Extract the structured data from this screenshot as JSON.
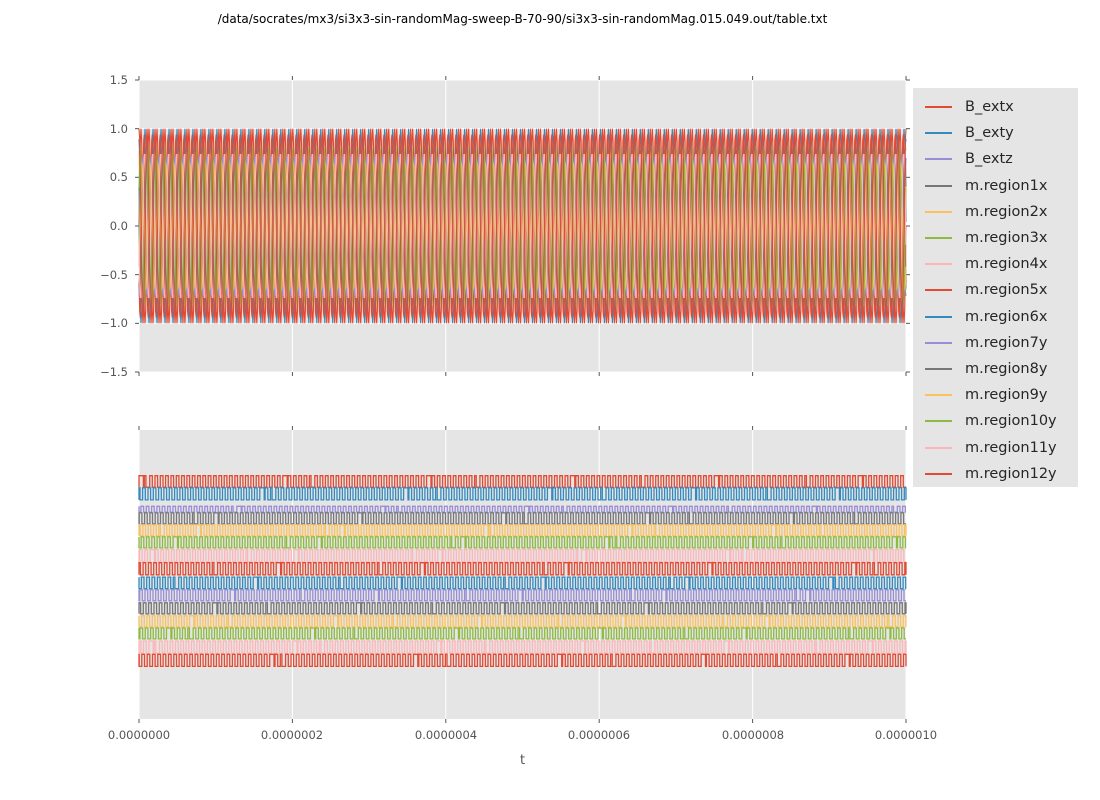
{
  "title": "/data/socrates/mx3/si3x3-sin-randomMag-sweep-B-70-90/si3x3-sin-randomMag.015.049.out/table.txt",
  "colors": {
    "figure_bg": "#ffffff",
    "axes_bg": "#e5e5e5",
    "grid": "#ffffff",
    "tick": "#555555",
    "tick_label": "#555555",
    "title_text": "#000000",
    "legend_bg": "#e5e5e5",
    "legend_text": "#262626"
  },
  "legend": {
    "items": [
      {
        "label": "B_extx",
        "color": "#E24A33"
      },
      {
        "label": "B_exty",
        "color": "#348ABD"
      },
      {
        "label": "B_extz",
        "color": "#988ED5"
      },
      {
        "label": "m.region1x",
        "color": "#777777"
      },
      {
        "label": "m.region2x",
        "color": "#FBC15E"
      },
      {
        "label": "m.region3x",
        "color": "#8EBA42"
      },
      {
        "label": "m.region4x",
        "color": "#FFB5B8"
      },
      {
        "label": "m.region5x",
        "color": "#E24A33"
      },
      {
        "label": "m.region6x",
        "color": "#348ABD"
      },
      {
        "label": "m.region7y",
        "color": "#988ED5"
      },
      {
        "label": "m.region8y",
        "color": "#777777"
      },
      {
        "label": "m.region9y",
        "color": "#FBC15E"
      },
      {
        "label": "m.region10y",
        "color": "#8EBA42"
      },
      {
        "label": "m.region11y",
        "color": "#FFB5B8"
      },
      {
        "label": "m.region12y",
        "color": "#E24A33"
      }
    ]
  },
  "chart_data": [
    {
      "id": "top-subplot",
      "type": "line",
      "waveform": "sine",
      "xlim": [
        0,
        1e-06
      ],
      "ylim": [
        -1.5,
        1.5
      ],
      "xticks": [
        0,
        2e-07,
        4e-07,
        6e-07,
        8e-07,
        1e-06
      ],
      "yticks": [
        1.5,
        1.0,
        0.5,
        0.0,
        -0.5,
        -1.0,
        -1.5
      ],
      "yticklabels": [
        "1.5",
        "1.0",
        "0.5",
        "0.0",
        "−0.5",
        "−1.0",
        "−1.5"
      ],
      "grid": "both",
      "cycles": 96,
      "series": [
        {
          "name": "B_extx",
          "color": "#E24A33",
          "amplitude": 1.0,
          "phase": 0.0
        },
        {
          "name": "B_exty",
          "color": "#348ABD",
          "amplitude": 1.0,
          "phase": 3.1
        },
        {
          "name": "B_extz",
          "color": "#988ED5",
          "amplitude": 0.75,
          "phase": 1.2
        },
        {
          "name": "m.region1x",
          "color": "#777777",
          "amplitude": 0.7,
          "phase": 4.3
        },
        {
          "name": "m.region2x",
          "color": "#FBC15E",
          "amplitude": 0.85,
          "phase": 2.0
        },
        {
          "name": "m.region3x",
          "color": "#8EBA42",
          "amplitude": 0.68,
          "phase": 5.1
        },
        {
          "name": "m.region4x",
          "color": "#FFB5B8",
          "amplitude": 0.8,
          "phase": 0.9
        },
        {
          "name": "m.region5x",
          "color": "#E24A33",
          "amplitude": 0.95,
          "phase": 3.8
        },
        {
          "name": "m.region6x",
          "color": "#348ABD",
          "amplitude": 0.9,
          "phase": 1.7
        },
        {
          "name": "m.region7y",
          "color": "#988ED5",
          "amplitude": 0.72,
          "phase": 4.8
        },
        {
          "name": "m.region8y",
          "color": "#777777",
          "amplitude": 0.78,
          "phase": 2.6
        },
        {
          "name": "m.region9y",
          "color": "#FBC15E",
          "amplitude": 0.66,
          "phase": 5.6
        },
        {
          "name": "m.region10y",
          "color": "#8EBA42",
          "amplitude": 0.82,
          "phase": 0.5
        },
        {
          "name": "m.region11y",
          "color": "#FFB5B8",
          "amplitude": 0.76,
          "phase": 3.4
        },
        {
          "name": "m.region12y",
          "color": "#E24A33",
          "amplitude": 1.0,
          "phase": 1.55
        }
      ]
    },
    {
      "id": "bottom-subplot",
      "type": "line",
      "waveform": "square",
      "xlabel": "t",
      "xlim": [
        0,
        1e-06
      ],
      "xticks": [
        0,
        2e-07,
        4e-07,
        6e-07,
        8e-07,
        1e-06
      ],
      "xticklabels": [
        "0.0000000",
        "0.0000002",
        "0.0000004",
        "0.0000006",
        "0.0000008",
        "0.0000010"
      ],
      "grid": "x",
      "cycles": 144,
      "y_axis_ticks_visible": false,
      "series": [
        {
          "name": "B_extx",
          "color": "#E24A33",
          "center_frac": 0.178,
          "half_amp_frac": 0.02
        },
        {
          "name": "B_exty",
          "color": "#348ABD",
          "center_frac": 0.221,
          "half_amp_frac": 0.021
        },
        {
          "name": "B_extz",
          "color": "#988ED5",
          "center_frac": 0.274,
          "half_amp_frac": 0.01
        },
        {
          "name": "m.region1x",
          "color": "#777777",
          "center_frac": 0.306,
          "half_amp_frac": 0.019
        },
        {
          "name": "m.region2x",
          "color": "#FBC15E",
          "center_frac": 0.347,
          "half_amp_frac": 0.019
        },
        {
          "name": "m.region3x",
          "color": "#8EBA42",
          "center_frac": 0.389,
          "half_amp_frac": 0.019
        },
        {
          "name": "m.region4x",
          "color": "#FFB5B8",
          "center_frac": 0.435,
          "half_amp_frac": 0.021
        },
        {
          "name": "m.region5x",
          "color": "#E24A33",
          "center_frac": 0.48,
          "half_amp_frac": 0.021
        },
        {
          "name": "m.region6x",
          "color": "#348ABD",
          "center_frac": 0.529,
          "half_amp_frac": 0.02
        },
        {
          "name": "m.region7y",
          "color": "#988ED5",
          "center_frac": 0.572,
          "half_amp_frac": 0.019
        },
        {
          "name": "m.region8y",
          "color": "#777777",
          "center_frac": 0.617,
          "half_amp_frac": 0.019
        },
        {
          "name": "m.region9y",
          "color": "#FBC15E",
          "center_frac": 0.662,
          "half_amp_frac": 0.019
        },
        {
          "name": "m.region10y",
          "color": "#8EBA42",
          "center_frac": 0.704,
          "half_amp_frac": 0.019
        },
        {
          "name": "m.region11y",
          "color": "#FFB5B8",
          "center_frac": 0.751,
          "half_amp_frac": 0.021
        },
        {
          "name": "m.region12y",
          "color": "#E24A33",
          "center_frac": 0.797,
          "half_amp_frac": 0.021
        }
      ]
    }
  ]
}
